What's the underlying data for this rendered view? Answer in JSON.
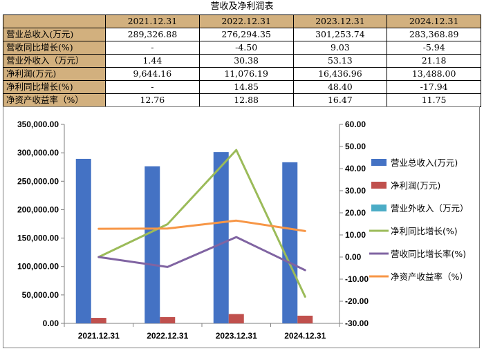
{
  "table": {
    "title": "营收及净利润表",
    "corner": "",
    "headers": [
      "2021.12.31",
      "2022.12.31",
      "2023.12.31",
      "2024.12.31"
    ],
    "rows": [
      {
        "label": "营业总收入(万元)",
        "values": [
          "289,326.88",
          "276,294.35",
          "301,253.74",
          "283,368.89"
        ]
      },
      {
        "label": "营收同比增长(%)",
        "values": [
          "-",
          "-4.50",
          "9.03",
          "-5.94"
        ]
      },
      {
        "label": "营业外收入（万元）",
        "values": [
          "1.44",
          "30.38",
          "53.13",
          "21.18"
        ]
      },
      {
        "label": "净利润(万元)",
        "values": [
          "9,644.16",
          "11,076.19",
          "16,436.96",
          "13,488.00"
        ]
      },
      {
        "label": "净利同比增长(%)",
        "values": [
          "-",
          "14.85",
          "48.40",
          "-17.94"
        ]
      },
      {
        "label": "净资产收益率（%）",
        "values": [
          "12.76",
          "12.88",
          "16.47",
          "11.75"
        ]
      }
    ]
  },
  "chart_data": {
    "type": "bar",
    "title": "",
    "categories": [
      "2021.12.31",
      "2022.12.31",
      "2023.12.31",
      "2024.12.31"
    ],
    "y_left": {
      "range": [
        0,
        350000
      ],
      "ticks": [
        0,
        50000,
        100000,
        150000,
        200000,
        250000,
        300000,
        350000
      ],
      "tick_labels": [
        "0.00",
        "50,000.00",
        "100,000.00",
        "150,000.00",
        "200,000.00",
        "250,000.00",
        "300,000.00",
        "350,000.00"
      ]
    },
    "y_right": {
      "range": [
        -30,
        60
      ],
      "ticks": [
        -30,
        -20,
        -10,
        0,
        10,
        20,
        30,
        40,
        50,
        60
      ],
      "tick_labels": [
        "-30.00",
        "-20.00",
        "-10.00",
        "0.00",
        "10.00",
        "20.00",
        "30.00",
        "40.00",
        "50.00",
        "60.00"
      ]
    },
    "series": [
      {
        "name": "营业总收入(万元)",
        "kind": "bar",
        "axis": "left",
        "color": "#4472c4",
        "values": [
          289326.88,
          276294.35,
          301253.74,
          283368.89
        ]
      },
      {
        "name": "净利润(万元)",
        "kind": "bar",
        "axis": "left",
        "color": "#c0504d",
        "values": [
          9644.16,
          11076.19,
          16436.96,
          13488.0
        ]
      },
      {
        "name": "营业外收入（万元）",
        "kind": "bar",
        "axis": "left",
        "color": "#4bacc6",
        "values": [
          1.44,
          30.38,
          53.13,
          21.18
        ]
      },
      {
        "name": "净利同比增长(%)",
        "kind": "line",
        "axis": "right",
        "color": "#9bbb59",
        "values": [
          0,
          14.85,
          48.4,
          -17.94
        ]
      },
      {
        "name": "营收同比增长率(%)",
        "kind": "line",
        "axis": "right",
        "color": "#8064a2",
        "values": [
          0,
          -4.5,
          9.03,
          -5.94
        ]
      },
      {
        "name": "净资产收益率（%）",
        "kind": "line",
        "axis": "right",
        "color": "#f79646",
        "values": [
          12.76,
          12.88,
          16.47,
          11.75
        ]
      }
    ],
    "legend_position": "right"
  }
}
